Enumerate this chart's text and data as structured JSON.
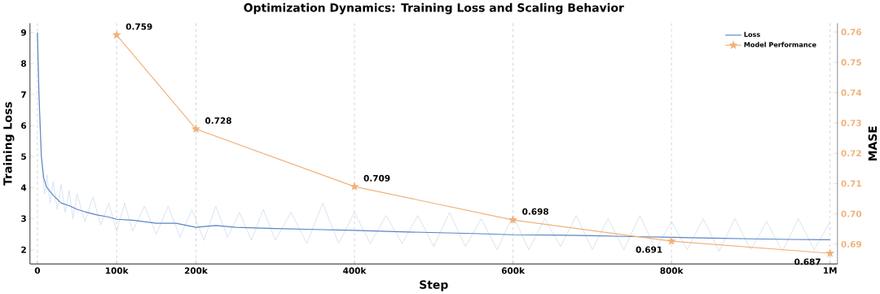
{
  "chart_data": {
    "type": "line",
    "title": "Optimization Dynamics: Training Loss and Scaling Behavior",
    "xlabel": "Step",
    "ylabel": "Training Loss",
    "y2label": "MASE",
    "xlim": [
      -9400,
      1009400
    ],
    "ylim": [
      1.54,
      9.3
    ],
    "y2lim": [
      0.6835,
      0.7629
    ],
    "xticks": [
      {
        "value": 0,
        "label": "0"
      },
      {
        "value": 100000,
        "label": "100k"
      },
      {
        "value": 200000,
        "label": "200k"
      },
      {
        "value": 400000,
        "label": "400k"
      },
      {
        "value": 600000,
        "label": "600k"
      },
      {
        "value": 800000,
        "label": "800k"
      },
      {
        "value": 1000000,
        "label": "1M"
      }
    ],
    "yticks": [
      2,
      3,
      4,
      5,
      6,
      7,
      8,
      9
    ],
    "y2ticks": [
      0.69,
      {
        "value": 0.7,
        "label": "0.70"
      },
      0.71,
      0.72,
      0.73,
      0.74,
      0.75,
      0.76
    ],
    "grid": "x",
    "legend": "top right",
    "series": [
      {
        "color": "#c6d8ef",
        "marker": "none",
        "x": [
          0,
          3000,
          6000,
          9000,
          12000,
          16000,
          20000,
          25000,
          30000,
          35000,
          40000,
          45000,
          50000,
          60000,
          70000,
          80000,
          90000,
          100000,
          110000,
          120000,
          135000,
          150000,
          165000,
          180000,
          195000,
          210000,
          225000,
          240000,
          255000,
          270000,
          285000,
          300000,
          320000,
          340000,
          360000,
          380000,
          400000,
          420000,
          440000,
          460000,
          480000,
          500000,
          520000,
          540000,
          560000,
          580000,
          600000,
          620000,
          640000,
          660000,
          680000,
          700000,
          720000,
          740000,
          760000,
          780000,
          800000,
          820000,
          840000,
          860000,
          880000,
          900000,
          920000,
          940000,
          960000,
          980000,
          1000000
        ],
        "values": [
          9.0,
          6.0,
          4.6,
          3.8,
          4.4,
          3.5,
          4.2,
          3.3,
          4.1,
          3.2,
          3.9,
          3.0,
          3.8,
          2.9,
          3.7,
          2.8,
          3.5,
          2.6,
          3.5,
          2.6,
          3.4,
          2.5,
          3.4,
          2.4,
          3.3,
          2.3,
          3.4,
          2.4,
          3.2,
          2.3,
          3.3,
          2.3,
          3.2,
          2.2,
          3.5,
          2.2,
          3.2,
          2.2,
          3.1,
          2.2,
          3.1,
          2.1,
          3.2,
          2.1,
          3.0,
          2.0,
          3.1,
          2.0,
          3.0,
          2.1,
          3.1,
          2.0,
          3.0,
          2.0,
          3.1,
          2.0,
          2.9,
          2.0,
          3.0,
          1.95,
          3.0,
          2.0,
          2.9,
          1.95,
          3.0,
          2.0,
          2.9
        ]
      },
      {
        "name": "Loss",
        "color": "#5b84c4",
        "marker": "none",
        "x": [
          0,
          2000,
          5000,
          8000,
          12000,
          20000,
          30000,
          40000,
          50000,
          60000,
          75000,
          90000,
          100000,
          120000,
          150000,
          175000,
          200000,
          225000,
          250000,
          300000,
          350000,
          400000,
          450000,
          500000,
          550000,
          600000,
          650000,
          700000,
          750000,
          800000,
          850000,
          900000,
          950000,
          1000000
        ],
        "values": [
          9.0,
          7.0,
          5.0,
          4.3,
          4.0,
          3.75,
          3.5,
          3.42,
          3.3,
          3.22,
          3.12,
          3.05,
          2.98,
          2.95,
          2.85,
          2.85,
          2.72,
          2.78,
          2.72,
          2.68,
          2.65,
          2.62,
          2.58,
          2.55,
          2.52,
          2.48,
          2.47,
          2.45,
          2.42,
          2.4,
          2.37,
          2.35,
          2.33,
          2.32
        ]
      },
      {
        "name": "Model Performance",
        "color": "#f0b27a",
        "axis": "y2",
        "marker": "star",
        "data_labels": true,
        "x": [
          100000,
          200000,
          400000,
          600000,
          800000,
          1000000
        ],
        "values": [
          0.759,
          0.728,
          0.709,
          0.698,
          0.691,
          0.687
        ]
      }
    ]
  }
}
